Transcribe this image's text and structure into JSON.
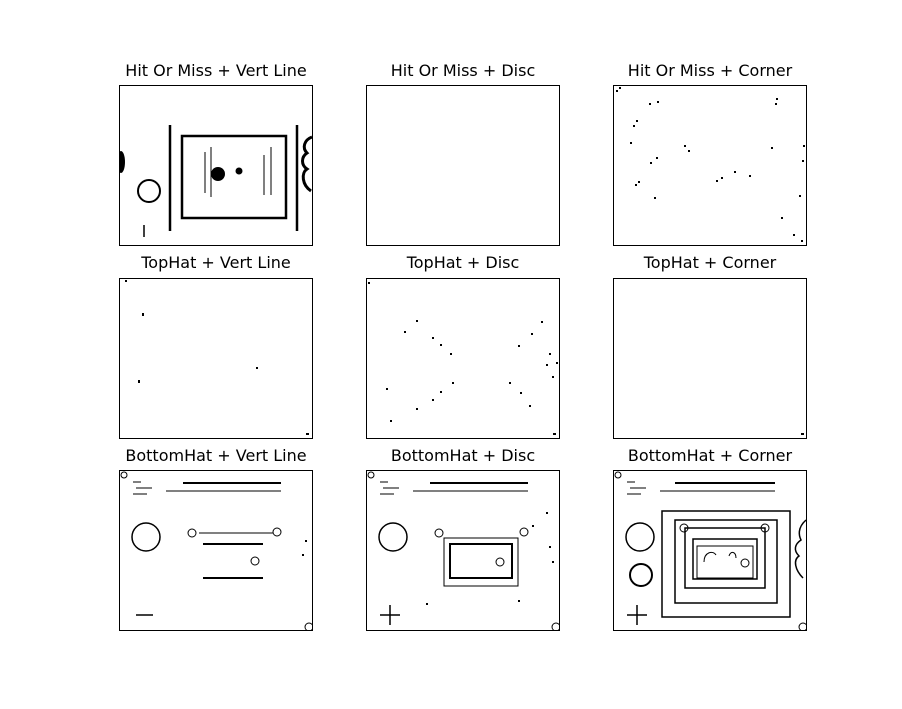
{
  "figure": {
    "panels": [
      {
        "title": "Hit Or Miss + Vert Line"
      },
      {
        "title": "Hit Or Miss + Disc"
      },
      {
        "title": "Hit Or Miss + Corner"
      },
      {
        "title": "TopHat + Vert Line"
      },
      {
        "title": "TopHat + Disc"
      },
      {
        "title": "TopHat + Corner"
      },
      {
        "title": "BottomHat + Vert Line"
      },
      {
        "title": "BottomHat + Disc"
      },
      {
        "title": "BottomHat + Corner"
      }
    ]
  },
  "colors": {
    "background": "#ffffff",
    "ink": "#000000"
  }
}
